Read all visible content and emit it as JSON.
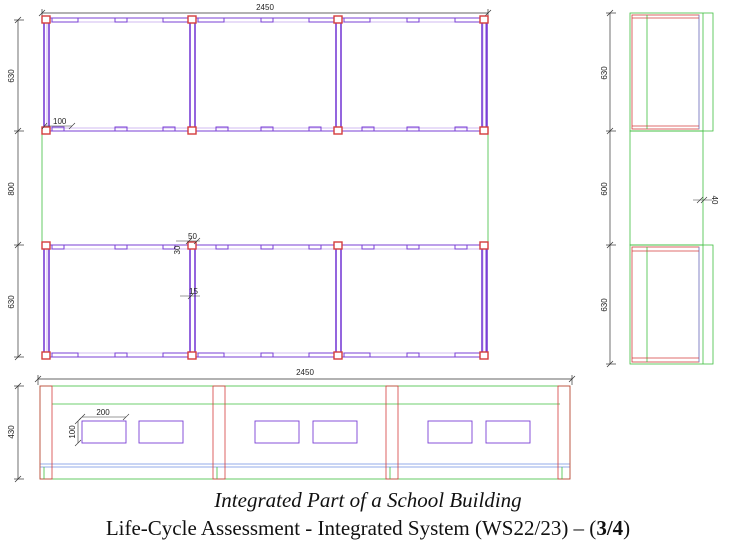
{
  "plan": {
    "overall_width": "2450",
    "bay_depth_top": "630",
    "corridor_depth": "800",
    "bay_depth_bottom": "630",
    "detail_100": "100",
    "detail_50": "50",
    "detail_30": "30",
    "detail_15": "15"
  },
  "side_view": {
    "depth_top": "630",
    "depth_middle": "600",
    "depth_bottom": "630",
    "offset": "40"
  },
  "elevation": {
    "overall_width": "2450",
    "height": "430",
    "window_width": "200",
    "window_height": "100"
  },
  "caption": {
    "subtitle": "Integrated Part of a School Building",
    "title_prefix": "Life-Cycle Assessment - Integrated System (WS22/23) – (",
    "title_part": "3/4",
    "title_suffix": ")"
  },
  "colors": {
    "wall_red": "#d43c3c",
    "beam_purple": "#7a3fd6",
    "outline_green": "#3fbf3f",
    "slab_blue": "#6f8fe0",
    "dim_line": "#333333"
  }
}
